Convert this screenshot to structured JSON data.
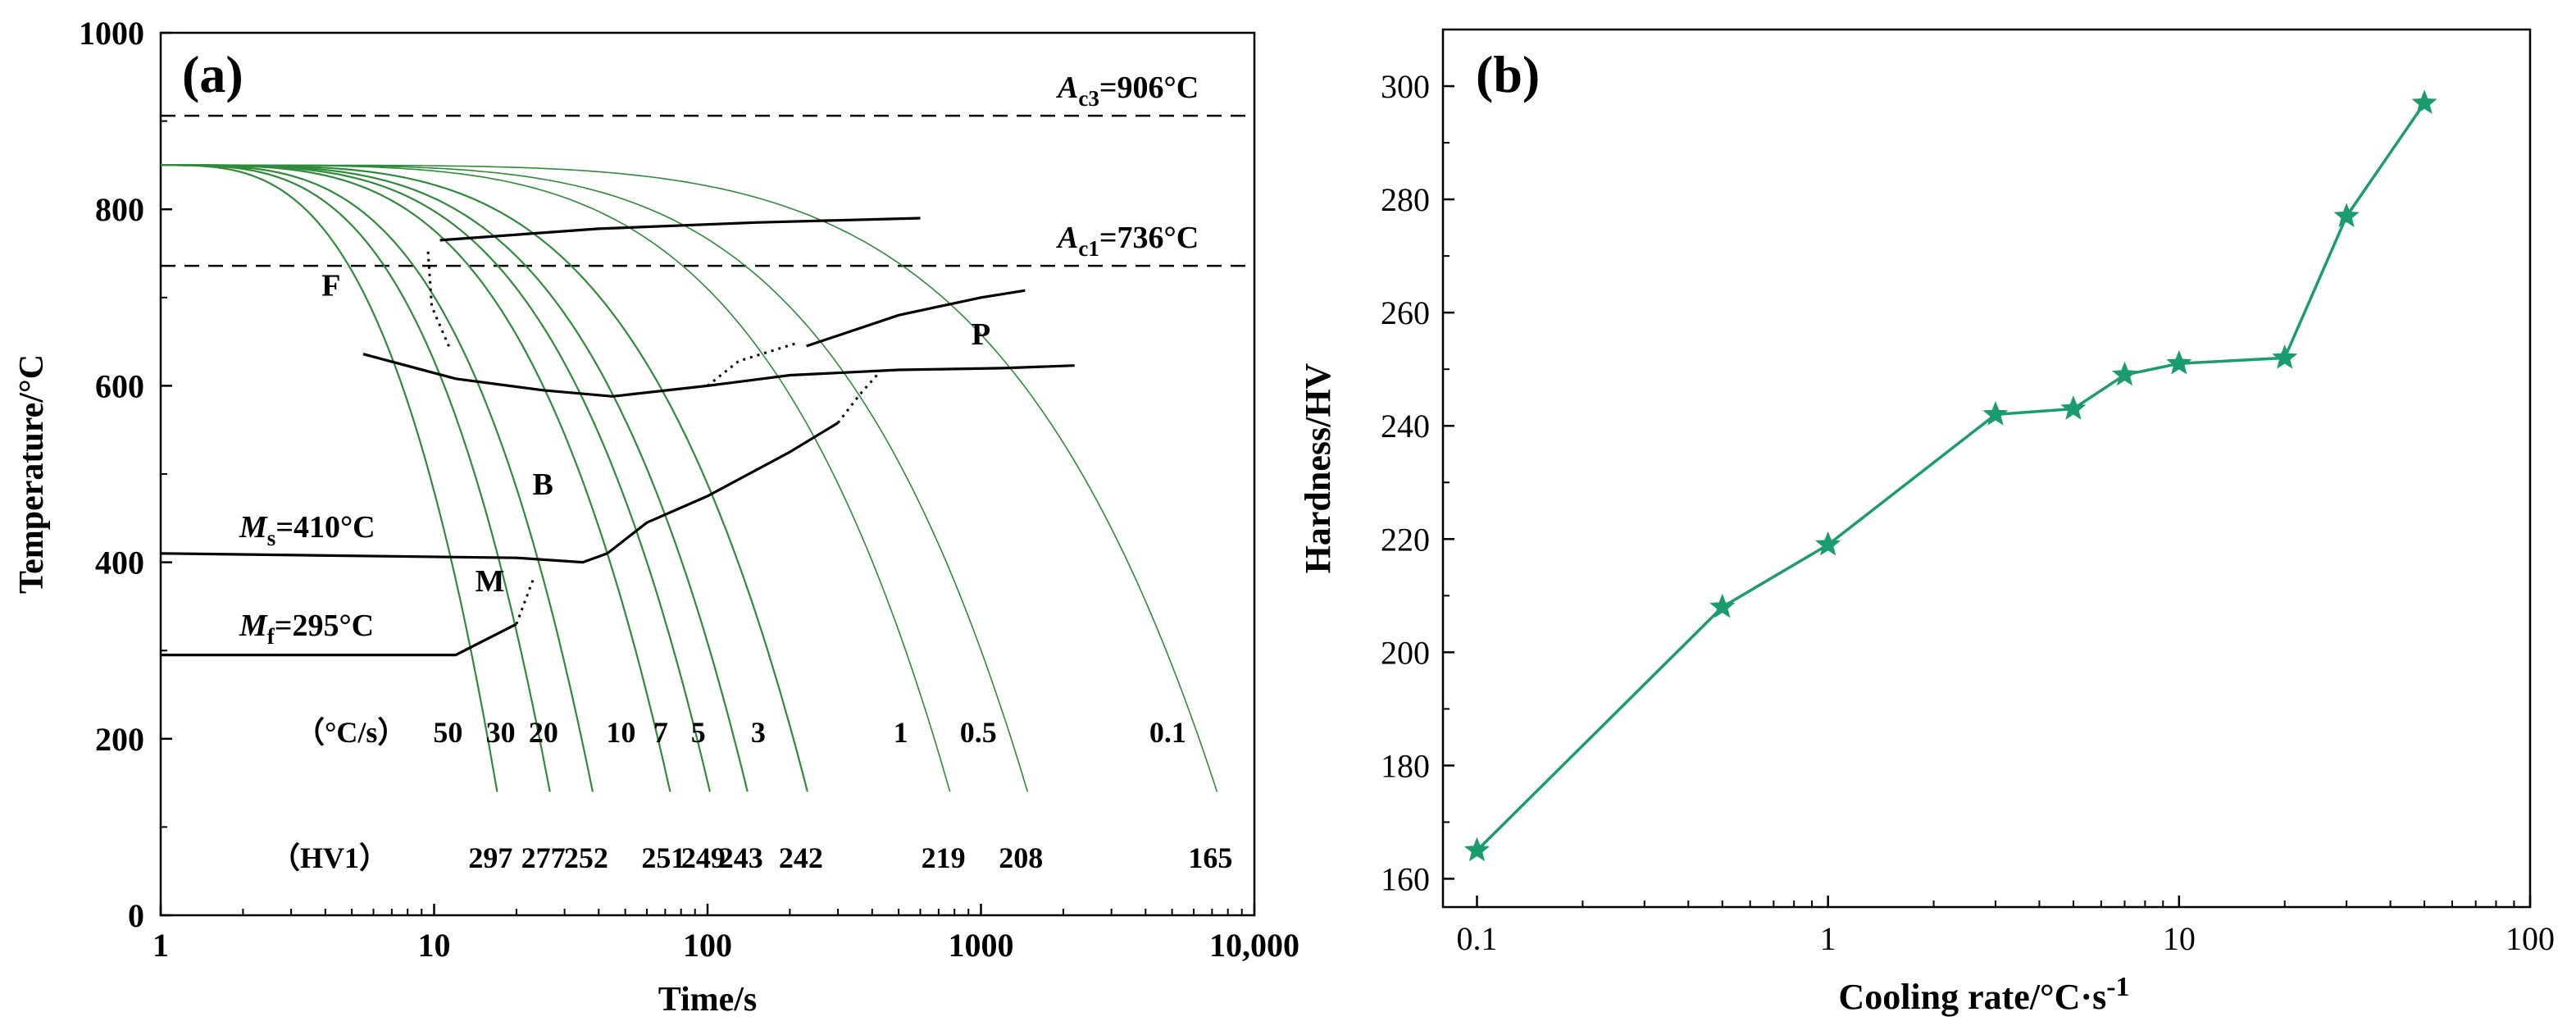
{
  "chart_data": [
    {
      "type": "line",
      "panel_label": "(a)",
      "xlabel": "Time/s",
      "ylabel": "Temperature/°C",
      "xscale": "log",
      "xlim": [
        1,
        10000
      ],
      "ylim": [
        0,
        1000
      ],
      "xticks": [
        "1",
        "10",
        "100",
        "1000",
        "10,000"
      ],
      "yticks": [
        "0",
        "200",
        "400",
        "600",
        "800",
        "1000"
      ],
      "reference_lines": [
        {
          "name": "Ac3",
          "label_main": "A",
          "label_sub": "c3",
          "label_value": "=906°C",
          "y": 906
        },
        {
          "name": "Ac1",
          "label_main": "A",
          "label_sub": "c1",
          "label_value": "=736°C",
          "y": 736
        }
      ],
      "ms_label": {
        "main": "M",
        "sub": "s",
        "value": "=410°C"
      },
      "mf_label": {
        "main": "M",
        "sub": "f",
        "value": "=295°C"
      },
      "start_temperature": 850,
      "cooling_rate_header": "（°C/s）",
      "hardness_header": "（HV1）",
      "cooling_curves": [
        {
          "rate": "50",
          "hv": "297",
          "end_time": 17.0
        },
        {
          "rate": "30",
          "hv": "277",
          "end_time": 26.5
        },
        {
          "rate": "20",
          "hv": "252",
          "end_time": 38.0
        },
        {
          "rate": "10",
          "hv": "251",
          "end_time": 73.0
        },
        {
          "rate": "7",
          "hv": "249",
          "end_time": 102.0
        },
        {
          "rate": "5",
          "hv": "243",
          "end_time": 140.0
        },
        {
          "rate": "3",
          "hv": "242",
          "end_time": 232.0
        },
        {
          "rate": "1",
          "hv": "219",
          "end_time": 770.0
        },
        {
          "rate": "0.5",
          "hv": "208",
          "end_time": 1480.0
        },
        {
          "rate": "0.1",
          "hv": "165",
          "end_time": 7300.0
        }
      ],
      "phase_labels": [
        "F",
        "P",
        "B",
        "M"
      ],
      "phase_boundaries": {
        "ferrite_start": [
          [
            10.5,
            765
          ],
          [
            40,
            778
          ],
          [
            150,
            785
          ],
          [
            600,
            790
          ]
        ],
        "pearlite_start": [
          [
            230,
            645
          ],
          [
            500,
            680
          ],
          [
            1000,
            700
          ],
          [
            1450,
            708
          ]
        ],
        "transformation_finish": [
          [
            5.5,
            636
          ],
          [
            12,
            608
          ],
          [
            25,
            595
          ],
          [
            45,
            588
          ],
          [
            100,
            600
          ],
          [
            200,
            612
          ],
          [
            500,
            618
          ],
          [
            1200,
            620
          ],
          [
            2200,
            623
          ]
        ],
        "bainite_upper_finish": [
          [
            43,
            410
          ],
          [
            60,
            445
          ],
          [
            100,
            475
          ],
          [
            200,
            525
          ],
          [
            300,
            558
          ]
        ],
        "ms_line": [
          [
            1,
            410
          ],
          [
            20,
            405
          ],
          [
            35,
            400
          ],
          [
            43,
            410
          ]
        ],
        "mf_line": [
          [
            1,
            295
          ],
          [
            12,
            295
          ],
          [
            20,
            330
          ]
        ]
      },
      "dotted_boundaries": [
        [
          [
            9.5,
            752
          ],
          [
            9.8,
            690
          ],
          [
            11.5,
            640
          ]
        ],
        [
          [
            20,
            330
          ],
          [
            23,
            380
          ]
        ],
        [
          [
            100,
            600
          ],
          [
            130,
            628
          ],
          [
            210,
            648
          ]
        ],
        [
          [
            300,
            558
          ],
          [
            360,
            590
          ],
          [
            430,
            617
          ]
        ]
      ]
    },
    {
      "type": "line",
      "panel_label": "(b)",
      "xlabel": "Cooling rate/°C·s",
      "xlabel_exponent": "-1",
      "ylabel": "Hardness/HV",
      "xscale": "log",
      "xlim": [
        0.08,
        100
      ],
      "ylim": [
        155,
        310
      ],
      "xticks": [
        "0.1",
        "1",
        "10",
        "100"
      ],
      "yticks": [
        "160",
        "180",
        "200",
        "220",
        "240",
        "260",
        "280",
        "300"
      ],
      "marker": "star",
      "color": "#1a9c6c",
      "x": [
        0.1,
        0.5,
        1,
        3,
        5,
        7,
        10,
        20,
        30,
        50
      ],
      "values": [
        165,
        208,
        219,
        242,
        243,
        249,
        251,
        252,
        277,
        297
      ]
    }
  ]
}
